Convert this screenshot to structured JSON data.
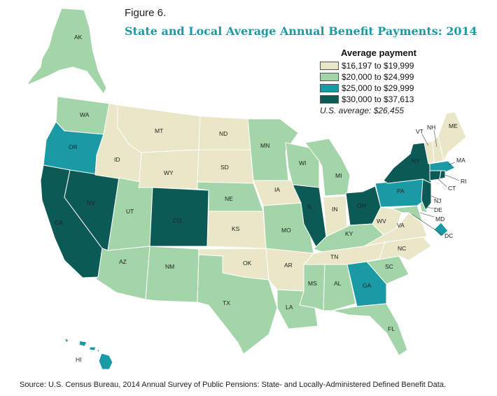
{
  "figure_label": "Figure 6.",
  "title": "State and Local Average Annual Benefit Payments: 2014",
  "legend": {
    "title": "Average payment",
    "items": [
      {
        "label": "$16,197 to $19,999",
        "color": "#e9e7c7"
      },
      {
        "label": "$20,000 to $24,999",
        "color": "#a3d5a9"
      },
      {
        "label": "$25,000 to $29,999",
        "color": "#1a9aa5"
      },
      {
        "label": "$30,000 to $37,613",
        "color": "#0c5a56"
      }
    ],
    "us_average": "U.S. average: $26,455"
  },
  "source": "Source: U.S. Census Bureau, 2014 Annual Survey of Public Pensions: State- and Locally-Administered Defined Benefit Data.",
  "state_labels": {
    "AK": "AK",
    "HI": "HI",
    "WA": "WA",
    "OR": "OR",
    "CA": "CA",
    "NV": "NV",
    "ID": "ID",
    "MT": "MT",
    "WY": "WY",
    "UT": "UT",
    "CO": "CO",
    "AZ": "AZ",
    "NM": "NM",
    "ND": "ND",
    "SD": "SD",
    "NE": "NE",
    "KS": "KS",
    "OK": "OK",
    "TX": "TX",
    "MN": "MN",
    "IA": "IA",
    "MO": "MO",
    "AR": "AR",
    "LA": "LA",
    "WI": "WI",
    "IL": "IL",
    "MI": "MI",
    "IN": "IN",
    "OH": "OH",
    "KY": "KY",
    "TN": "TN",
    "MS": "MS",
    "AL": "AL",
    "GA": "GA",
    "FL": "FL",
    "SC": "SC",
    "NC": "NC",
    "VA": "VA",
    "WV": "WV",
    "PA": "PA",
    "NY": "NY",
    "VT": "VT",
    "NH": "NH",
    "ME": "ME",
    "MA": "MA",
    "RI": "RI",
    "CT": "CT",
    "NJ": "NJ",
    "DE": "DE",
    "MD": "MD",
    "DC": "DC"
  }
}
